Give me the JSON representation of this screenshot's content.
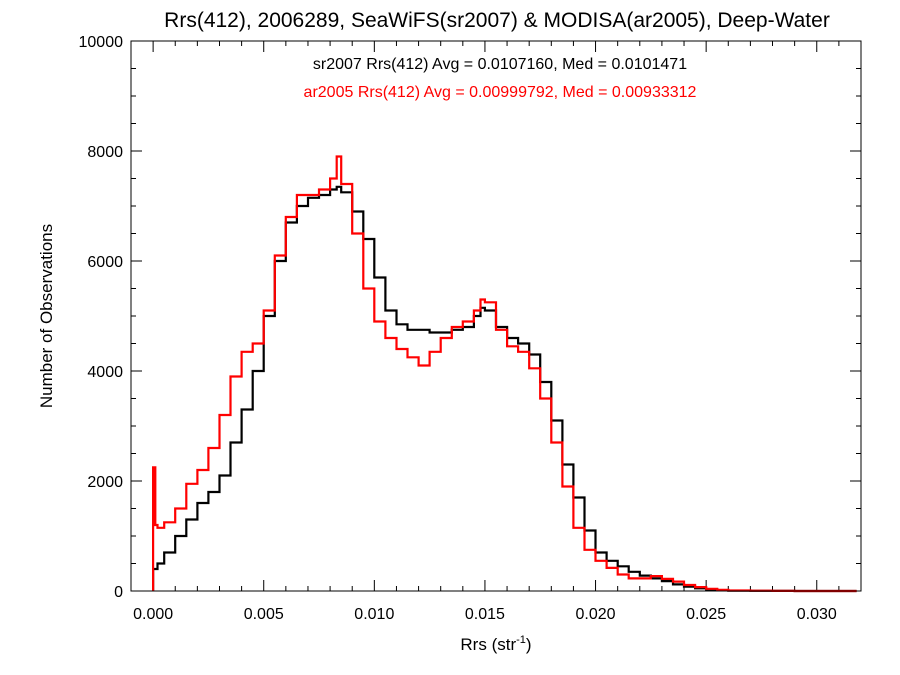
{
  "chart_data": {
    "type": "line",
    "title": "Rrs(412), 2006289, SeaWiFS(sr2007) & MODISA(ar2005), Deep-Water",
    "xlabel_main": "Rrs (str",
    "xlabel_sup": "-1",
    "xlabel_end": ")",
    "ylabel": "Number of Observations",
    "xlim": [
      -0.001,
      0.032
    ],
    "ylim": [
      0,
      10000
    ],
    "xticks": [
      0.0,
      0.005,
      0.01,
      0.015,
      0.02,
      0.025,
      0.03
    ],
    "xtick_labels": [
      "0.000",
      "0.005",
      "0.010",
      "0.015",
      "0.020",
      "0.025",
      "0.030"
    ],
    "yticks": [
      0,
      2000,
      4000,
      6000,
      8000,
      10000
    ],
    "ytick_labels": [
      "0",
      "2000",
      "4000",
      "6000",
      "8000",
      "10000"
    ],
    "legend_placement": "top-center",
    "series": [
      {
        "name": "sr2007",
        "color": "#000000",
        "annotation": "sr2007 Rrs(412) Avg = 0.0107160, Med = 0.0101471",
        "x": [
          0.0,
          0.0002,
          0.0005,
          0.001,
          0.0015,
          0.002,
          0.0025,
          0.003,
          0.0035,
          0.004,
          0.0045,
          0.005,
          0.0055,
          0.006,
          0.0065,
          0.007,
          0.0075,
          0.008,
          0.0083,
          0.0085,
          0.009,
          0.0095,
          0.01,
          0.0105,
          0.011,
          0.0115,
          0.012,
          0.0125,
          0.013,
          0.0135,
          0.014,
          0.0145,
          0.0148,
          0.015,
          0.0155,
          0.016,
          0.0165,
          0.017,
          0.0175,
          0.018,
          0.0185,
          0.019,
          0.0195,
          0.02,
          0.0205,
          0.021,
          0.0215,
          0.022,
          0.0225,
          0.023,
          0.0235,
          0.024,
          0.0245,
          0.025,
          0.0255,
          0.026,
          0.0265,
          0.027,
          0.028,
          0.029,
          0.03,
          0.031,
          0.0318
        ],
        "y": [
          400,
          500,
          700,
          1000,
          1300,
          1600,
          1800,
          2100,
          2700,
          3300,
          4000,
          5000,
          6000,
          6700,
          7000,
          7150,
          7200,
          7300,
          7350,
          7250,
          6900,
          6400,
          5700,
          5100,
          4850,
          4750,
          4750,
          4700,
          4700,
          4750,
          4800,
          5000,
          5150,
          5100,
          4800,
          4600,
          4500,
          4300,
          3800,
          3100,
          2300,
          1700,
          1100,
          700,
          550,
          450,
          350,
          280,
          230,
          180,
          120,
          80,
          50,
          30,
          15,
          8,
          5,
          3,
          1,
          0,
          0,
          0,
          0
        ]
      },
      {
        "name": "ar2005",
        "color": "#ff0000",
        "annotation": "ar2005 Rrs(412) Avg = 0.00999792, Med = 0.00933312",
        "x": [
          0.0,
          0.0001,
          0.0002,
          0.0005,
          0.001,
          0.0015,
          0.002,
          0.0025,
          0.003,
          0.0035,
          0.004,
          0.0045,
          0.005,
          0.0055,
          0.006,
          0.0065,
          0.007,
          0.0075,
          0.008,
          0.0083,
          0.0085,
          0.009,
          0.0095,
          0.01,
          0.0105,
          0.011,
          0.0115,
          0.012,
          0.0125,
          0.013,
          0.0135,
          0.014,
          0.0145,
          0.0148,
          0.015,
          0.0155,
          0.016,
          0.0165,
          0.017,
          0.0175,
          0.018,
          0.0185,
          0.019,
          0.0195,
          0.02,
          0.0205,
          0.021,
          0.0215,
          0.022,
          0.0225,
          0.023,
          0.0235,
          0.024,
          0.0245,
          0.025,
          0.0255,
          0.026,
          0.027,
          0.028,
          0.029,
          0.03,
          0.031,
          0.0318
        ],
        "y": [
          2250,
          1200,
          1150,
          1250,
          1500,
          1950,
          2200,
          2600,
          3200,
          3900,
          4350,
          4500,
          5100,
          6100,
          6800,
          7200,
          7200,
          7300,
          7500,
          7900,
          7400,
          6500,
          5500,
          4900,
          4600,
          4400,
          4250,
          4100,
          4350,
          4600,
          4800,
          4900,
          5100,
          5300,
          5250,
          4750,
          4450,
          4350,
          4050,
          3500,
          2700,
          1900,
          1150,
          750,
          550,
          420,
          300,
          230,
          230,
          270,
          220,
          170,
          110,
          70,
          40,
          20,
          10,
          5,
          2,
          0,
          0,
          0,
          0
        ]
      }
    ]
  }
}
